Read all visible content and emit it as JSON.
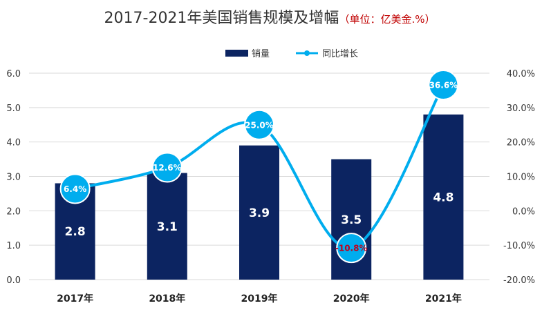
{
  "chart_data": {
    "type": "bar+line",
    "title": "2017-2021年美国销售规模及增幅",
    "title_unit": "（单位：亿美金.%）",
    "categories": [
      "2017年",
      "2018年",
      "2019年",
      "2020年",
      "2021年"
    ],
    "series": [
      {
        "name": "销量",
        "type": "bar",
        "axis": "left",
        "values": [
          2.8,
          3.1,
          3.9,
          3.5,
          4.8
        ],
        "labels": [
          "2.8",
          "3.1",
          "3.9",
          "3.5",
          "4.8"
        ],
        "color": "#0c2461"
      },
      {
        "name": "同比增长",
        "type": "line",
        "axis": "right",
        "values": [
          6.4,
          12.6,
          25.0,
          -10.8,
          36.6
        ],
        "labels": [
          "6.4%",
          "12.6%",
          "25.0%",
          "-10.8%",
          "36.6%"
        ],
        "color": "#00adee",
        "negative_label_color": "#c0001a"
      }
    ],
    "y_left": {
      "min": 0,
      "max": 6,
      "ticks": [
        "0.0",
        "1.0",
        "2.0",
        "3.0",
        "4.0",
        "5.0",
        "6.0"
      ]
    },
    "y_right": {
      "min": -20,
      "max": 40,
      "ticks": [
        "-20.0%",
        "-10.0%",
        "0.0%",
        "10.0%",
        "20.0%",
        "30.0%",
        "40.0%"
      ]
    },
    "grid": true,
    "legend_position": "top-center",
    "colors": {
      "title_unit": "#c00000",
      "grid": "#d9d9d9",
      "text": "#333333"
    }
  }
}
